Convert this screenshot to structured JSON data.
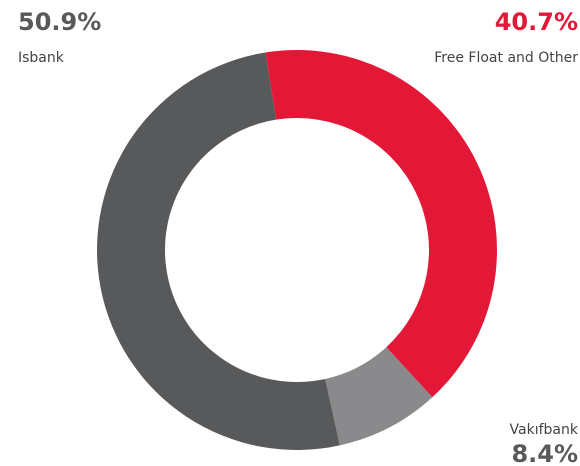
{
  "chart_data": {
    "type": "pie",
    "categories": [
      "Isbank",
      "Free Float and Other",
      "Vakıfbank"
    ],
    "values": [
      50.9,
      40.7,
      8.4
    ],
    "value_labels": [
      "50.9%",
      "40.7%",
      "8.4%"
    ],
    "colors": [
      "#58595b",
      "#e31837",
      "#8a8a8c"
    ]
  }
}
